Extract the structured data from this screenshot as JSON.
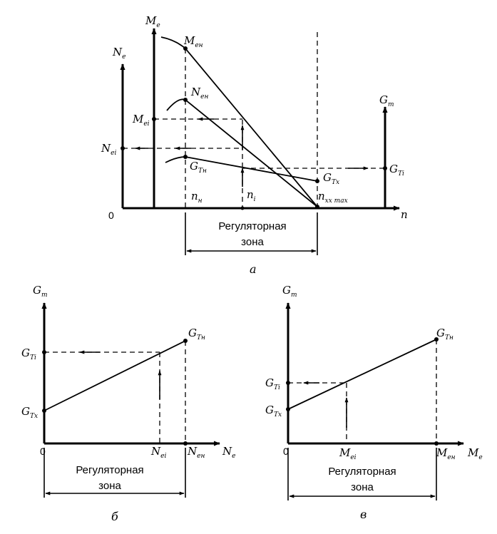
{
  "panel_a": {
    "caption": "а",
    "origin": "0",
    "axis_n": "n",
    "axis_Me": {
      "main": "M",
      "sub": "e"
    },
    "axis_Ne": {
      "main": "N",
      "sub": "e"
    },
    "axis_GT": {
      "main": "G",
      "sub": "т"
    },
    "Men": {
      "main": "M",
      "sub": "ен"
    },
    "Nen": {
      "main": "N",
      "sub": "ен"
    },
    "Mei": {
      "main": "M",
      "sub": "еi"
    },
    "Nei": {
      "main": "N",
      "sub": "еi"
    },
    "GTn": {
      "main": "G",
      "sub": "Тн"
    },
    "GTx": {
      "main": "G",
      "sub": "Тх"
    },
    "GTi": {
      "main": "G",
      "sub": "Тi"
    },
    "nn": {
      "main": "n",
      "sub": "н"
    },
    "ni": {
      "main": "n",
      "sub": "i"
    },
    "nxx": {
      "main": "n",
      "sub": "хх max"
    },
    "zone": [
      "Регуляторная",
      "зона"
    ]
  },
  "panel_b": {
    "caption": "б",
    "origin": "0",
    "axis_GT": {
      "main": "G",
      "sub": "т"
    },
    "axis_Ne": {
      "main": "N",
      "sub": "e"
    },
    "GTn": {
      "main": "G",
      "sub": "Тн"
    },
    "GTi": {
      "main": "G",
      "sub": "Тi"
    },
    "GTx": {
      "main": "G",
      "sub": "Тх"
    },
    "Nei": {
      "main": "N",
      "sub": "еi"
    },
    "Nen": {
      "main": "N",
      "sub": "ен"
    },
    "zone": [
      "Регуляторная",
      "зона"
    ]
  },
  "panel_v": {
    "caption": "в",
    "origin": "0",
    "axis_GT": {
      "main": "G",
      "sub": "т"
    },
    "axis_Me": {
      "main": "M",
      "sub": "e"
    },
    "GTn": {
      "main": "G",
      "sub": "Тн"
    },
    "GTi": {
      "main": "G",
      "sub": "Тi"
    },
    "GTx": {
      "main": "G",
      "sub": "Тх"
    },
    "Mei": {
      "main": "M",
      "sub": "еi"
    },
    "Men": {
      "main": "M",
      "sub": "ен"
    },
    "zone": [
      "Регуляторная",
      "зона"
    ]
  }
}
